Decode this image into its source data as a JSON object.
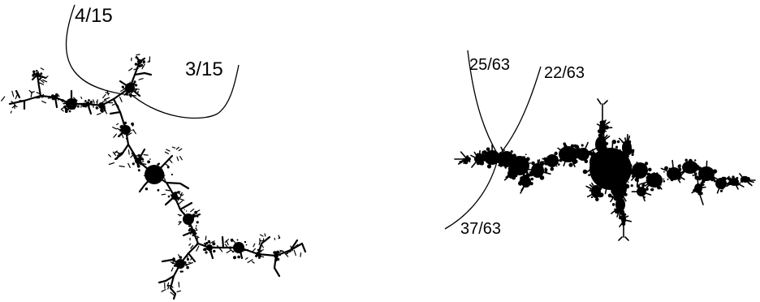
{
  "figure": {
    "colors": {
      "ink": "#000000",
      "background": "#ffffff"
    },
    "left_panel": {
      "ray_labels": [
        "4/15",
        "3/15"
      ]
    },
    "right_panel": {
      "ray_labels": [
        "25/63",
        "22/63",
        "37/63"
      ]
    }
  }
}
